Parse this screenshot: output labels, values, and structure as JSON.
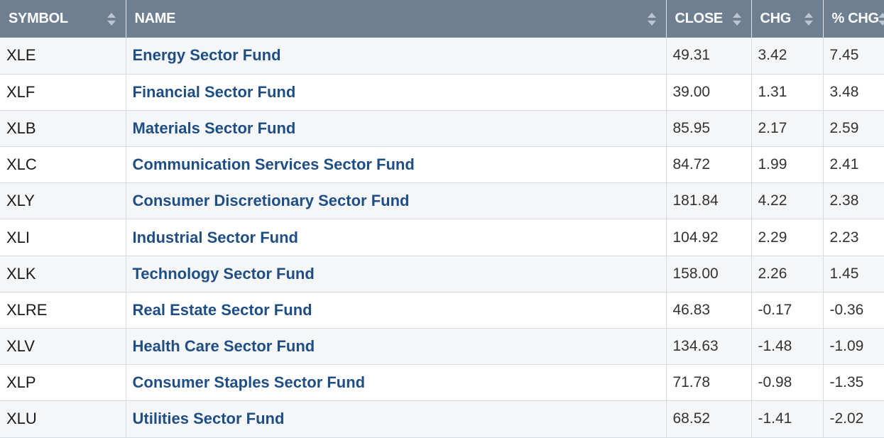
{
  "table": {
    "headers": {
      "symbol": "SYMBOL",
      "name": "NAME",
      "close": "CLOSE",
      "chg": "CHG",
      "pct_chg": "% CHG"
    },
    "rows": [
      {
        "symbol": "XLE",
        "name": "Energy Sector Fund",
        "close": "49.31",
        "chg": "3.42",
        "pct_chg": "7.45"
      },
      {
        "symbol": "XLF",
        "name": "Financial Sector Fund",
        "close": "39.00",
        "chg": "1.31",
        "pct_chg": "3.48"
      },
      {
        "symbol": "XLB",
        "name": "Materials Sector Fund",
        "close": "85.95",
        "chg": "2.17",
        "pct_chg": "2.59"
      },
      {
        "symbol": "XLC",
        "name": "Communication Services Sector Fund",
        "close": "84.72",
        "chg": "1.99",
        "pct_chg": "2.41"
      },
      {
        "symbol": "XLY",
        "name": "Consumer Discretionary Sector Fund",
        "close": "181.84",
        "chg": "4.22",
        "pct_chg": "2.38"
      },
      {
        "symbol": "XLI",
        "name": "Industrial Sector Fund",
        "close": "104.92",
        "chg": "2.29",
        "pct_chg": "2.23"
      },
      {
        "symbol": "XLK",
        "name": "Technology Sector Fund",
        "close": "158.00",
        "chg": "2.26",
        "pct_chg": "1.45"
      },
      {
        "symbol": "XLRE",
        "name": "Real Estate Sector Fund",
        "close": "46.83",
        "chg": "-0.17",
        "pct_chg": "-0.36"
      },
      {
        "symbol": "XLV",
        "name": "Health Care Sector Fund",
        "close": "134.63",
        "chg": "-1.48",
        "pct_chg": "-1.09"
      },
      {
        "symbol": "XLP",
        "name": "Consumer Staples Sector Fund",
        "close": "71.78",
        "chg": "-0.98",
        "pct_chg": "-1.35"
      },
      {
        "symbol": "XLU",
        "name": "Utilities Sector Fund",
        "close": "68.52",
        "chg": "-1.41",
        "pct_chg": "-2.02"
      }
    ]
  },
  "icons": {
    "sort": "sort-arrows-icon"
  },
  "colors": {
    "header_bg": "#6e7f92",
    "link": "#1f4e84",
    "row_alt": "#f4f6f8"
  }
}
